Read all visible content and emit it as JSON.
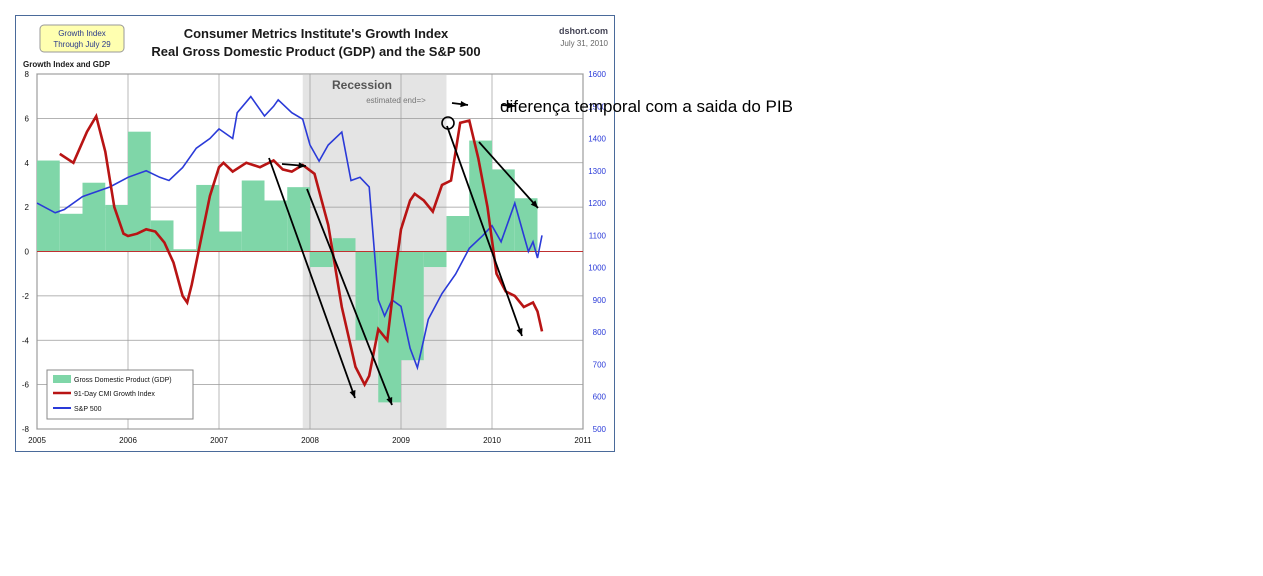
{
  "annotation": {
    "text": "diferença temporal com a saida do PIB"
  },
  "chart_data": {
    "type": "bar",
    "title": "Consumer Metrics Institute's Growth Index",
    "subtitle": "Real Gross Domestic Product (GDP) and the S&P 500",
    "badge": [
      "Growth Index",
      "Through July 29"
    ],
    "source": "dshort.com",
    "date": "July 31, 2010",
    "ylabel_left": "Growth Index and GDP",
    "recession_label": "Recession",
    "estimated_end_label": "estimated end=>",
    "xlim": [
      2005,
      2011
    ],
    "ylim_left": [
      -8,
      8
    ],
    "ylim_right": [
      500,
      1600
    ],
    "x_ticks": [
      "2005",
      "2006",
      "2007",
      "2008",
      "2009",
      "2010",
      "2011"
    ],
    "y_ticks_left": [
      "8",
      "6",
      "4",
      "2",
      "0",
      "-2",
      "-4",
      "-6",
      "-8"
    ],
    "y_ticks_right": [
      "1600",
      "1500",
      "1400",
      "1300",
      "1200",
      "1100",
      "1000",
      "900",
      "800",
      "700",
      "600",
      "500"
    ],
    "recession": [
      2007.92,
      2009.5
    ],
    "grid": true,
    "legend_position": "bottom-left",
    "colors": {
      "gdp": "#7fd6a8",
      "cmi": "#b81414",
      "sp500": "#2a3ad8",
      "recession": "#e4e4e4",
      "zero": "#c03030"
    },
    "legend": [
      "Gross Domestic Product (GDP)",
      "91-Day CMI Growth Index",
      "S&P 500"
    ],
    "series": [
      {
        "name": "Gross Domestic Product (GDP)",
        "kind": "step-bar",
        "quarters": [
          2005.0,
          2005.25,
          2005.5,
          2005.75,
          2006.0,
          2006.25,
          2006.5,
          2006.75,
          2007.0,
          2007.25,
          2007.5,
          2007.75,
          2008.0,
          2008.25,
          2008.5,
          2008.75,
          2009.0,
          2009.25,
          2009.5,
          2009.75,
          2010.0,
          2010.25
        ],
        "values": [
          4.1,
          1.7,
          3.1,
          2.1,
          5.4,
          1.4,
          0.1,
          3.0,
          0.9,
          3.2,
          2.3,
          2.9,
          -0.7,
          0.6,
          -4.0,
          -6.8,
          -4.9,
          -0.7,
          1.6,
          5.0,
          3.7,
          2.4
        ]
      },
      {
        "name": "91-Day CMI Growth Index",
        "kind": "line",
        "axis": "left",
        "x": [
          2005.25,
          2005.4,
          2005.55,
          2005.65,
          2005.75,
          2005.85,
          2005.95,
          2006.0,
          2006.1,
          2006.2,
          2006.3,
          2006.4,
          2006.5,
          2006.6,
          2006.65,
          2006.7,
          2006.8,
          2006.9,
          2007.0,
          2007.05,
          2007.15,
          2007.3,
          2007.45,
          2007.6,
          2007.7,
          2007.8,
          2007.92,
          2008.05,
          2008.2,
          2008.35,
          2008.5,
          2008.6,
          2008.65,
          2008.75,
          2008.85,
          2008.95,
          2009.0,
          2009.1,
          2009.15,
          2009.25,
          2009.35,
          2009.45,
          2009.55,
          2009.65,
          2009.75,
          2009.85,
          2009.95,
          2010.05,
          2010.15,
          2010.25,
          2010.35,
          2010.45,
          2010.5,
          2010.55
        ],
        "values": [
          4.4,
          4.0,
          5.4,
          6.1,
          4.5,
          2.0,
          0.8,
          0.7,
          0.8,
          1.0,
          0.9,
          0.4,
          -0.5,
          -2.0,
          -2.3,
          -1.5,
          0.5,
          2.5,
          3.8,
          4.0,
          3.6,
          4.0,
          3.8,
          4.1,
          3.7,
          3.6,
          3.9,
          3.5,
          1.2,
          -2.5,
          -5.2,
          -6.0,
          -5.6,
          -3.5,
          -4.0,
          -0.5,
          1.0,
          2.3,
          2.6,
          2.3,
          1.8,
          3.0,
          3.2,
          5.8,
          5.9,
          4.2,
          2.0,
          -1.0,
          -1.8,
          -2.0,
          -2.5,
          -2.3,
          -2.7,
          -3.6
        ]
      },
      {
        "name": "S&P 500",
        "kind": "line",
        "axis": "right",
        "x": [
          2005.0,
          2005.2,
          2005.3,
          2005.5,
          2005.6,
          2005.8,
          2006.0,
          2006.2,
          2006.35,
          2006.45,
          2006.6,
          2006.75,
          2006.9,
          2007.0,
          2007.15,
          2007.2,
          2007.35,
          2007.5,
          2007.6,
          2007.65,
          2007.8,
          2007.92,
          2008.0,
          2008.1,
          2008.2,
          2008.35,
          2008.45,
          2008.55,
          2008.65,
          2008.75,
          2008.82,
          2008.9,
          2009.0,
          2009.1,
          2009.18,
          2009.3,
          2009.45,
          2009.6,
          2009.75,
          2009.9,
          2010.0,
          2010.1,
          2010.25,
          2010.35,
          2010.4,
          2010.45,
          2010.5,
          2010.55
        ],
        "values": [
          1200,
          1170,
          1180,
          1220,
          1230,
          1250,
          1280,
          1300,
          1280,
          1270,
          1310,
          1370,
          1400,
          1430,
          1400,
          1480,
          1530,
          1470,
          1500,
          1520,
          1480,
          1460,
          1380,
          1330,
          1380,
          1420,
          1270,
          1280,
          1250,
          900,
          850,
          900,
          880,
          750,
          690,
          840,
          920,
          980,
          1060,
          1100,
          1130,
          1080,
          1200,
          1100,
          1050,
          1080,
          1030,
          1100
        ]
      }
    ]
  }
}
